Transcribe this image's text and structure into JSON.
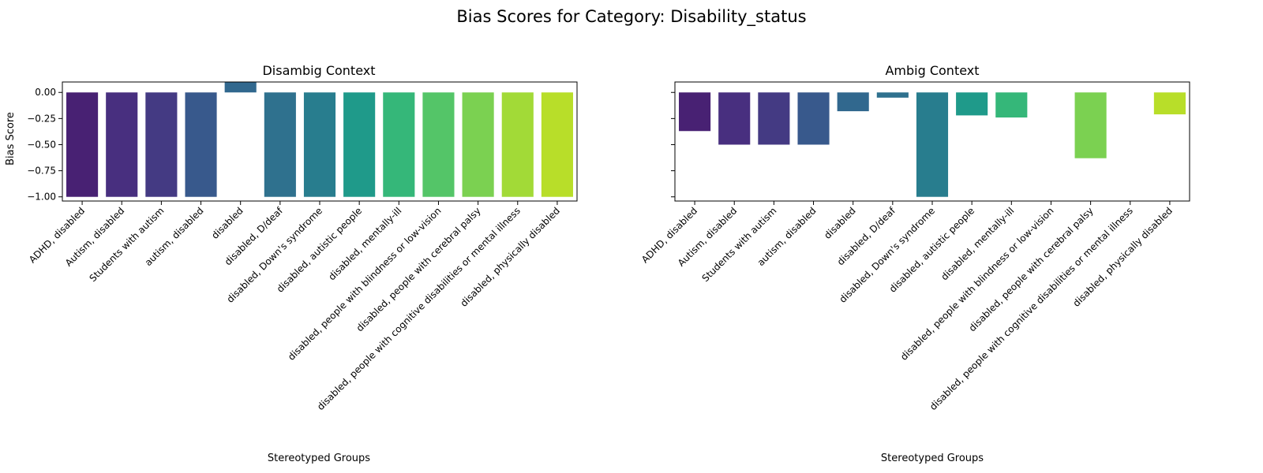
{
  "figure": {
    "title": "Bias Scores for Category: Disability_status"
  },
  "chart_data": [
    {
      "type": "bar",
      "title": "Disambig Context",
      "xlabel": "Stereotyped Groups",
      "ylabel": "Bias Score",
      "ylim": [
        -1.04,
        0.1
      ],
      "yticks": [
        -1.0,
        -0.75,
        -0.5,
        -0.25,
        0.0
      ],
      "ytick_labels": [
        "−1.00",
        "−0.75",
        "−0.50",
        "−0.25",
        "0.00"
      ],
      "grid": false,
      "categories": [
        "ADHD, disabled",
        "Autism, disabled",
        "Students with autism",
        "autism, disabled",
        "disabled",
        "disabled, D/deaf",
        "disabled, Down's syndrome",
        "disabled, autistic people",
        "disabled, mentally-ill",
        "disabled, people with blindness or low-vision",
        "disabled, people with cerebral palsy",
        "disabled, people with cognitive disabilities or mental illness",
        "disabled, physically disabled"
      ],
      "values": [
        -1.0,
        -1.0,
        -1.0,
        -1.0,
        0.1,
        -1.0,
        -1.0,
        -1.0,
        -1.0,
        -1.0,
        -1.0,
        -1.0,
        -1.0
      ],
      "colors": [
        "#482173",
        "#433e85",
        "#38588c",
        "#2d708e",
        "#25858e",
        "#1e9b8a",
        "#2ab07f",
        "#52c569",
        "#86d549",
        "#c2df23",
        "#a0da39",
        "#73d056",
        "#b5de2b"
      ],
      "bar_colors": [
        "#482173",
        "#482f7f",
        "#443a83",
        "#38598c",
        "#31688e",
        "#2f718e",
        "#287d8e",
        "#1f9a8a",
        "#35b779",
        "#54c568",
        "#7bd151",
        "#a2da37",
        "#b8de29"
      ]
    },
    {
      "type": "bar",
      "title": "Ambig Context",
      "xlabel": "Stereotyped Groups",
      "ylabel": "",
      "ylim": [
        -1.04,
        0.1
      ],
      "yticks": [
        -1.0,
        -0.75,
        -0.5,
        -0.25,
        0.0
      ],
      "grid": false,
      "categories": [
        "ADHD, disabled",
        "Autism, disabled",
        "Students with autism",
        "autism, disabled",
        "disabled",
        "disabled, D/deaf",
        "disabled, Down's syndrome",
        "disabled, autistic people",
        "disabled, mentally-ill",
        "disabled, people with blindness or low-vision",
        "disabled, people with cerebral palsy",
        "disabled, people with cognitive disabilities or mental illness",
        "disabled, physically disabled"
      ],
      "values": [
        -0.37,
        -0.5,
        -0.5,
        -0.5,
        -0.18,
        -0.05,
        -1.0,
        -0.22,
        -0.24,
        0.0,
        -0.63,
        0.0,
        -0.21
      ],
      "bar_colors": [
        "#482173",
        "#482f7f",
        "#443a83",
        "#38598c",
        "#31688e",
        "#2f718e",
        "#287d8e",
        "#1f9a8a",
        "#35b779",
        "#54c568",
        "#7bd151",
        "#a2da37",
        "#b8de29"
      ]
    }
  ]
}
